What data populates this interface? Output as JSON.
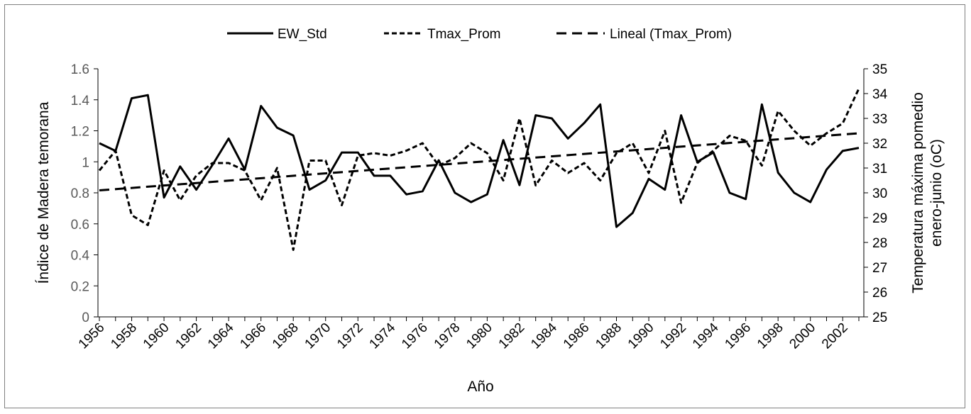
{
  "chart_data": {
    "type": "line",
    "title": "",
    "xlabel": "Año",
    "ylabel_left": "Índice de Madera temorana",
    "ylabel_right_line1": "Temperatura máxima pomedio",
    "ylabel_right_line2": "enero-junio (oC)",
    "x_tick_labels": [
      "1956",
      "1958",
      "1960",
      "1962",
      "1964",
      "1966",
      "1968",
      "1970",
      "1972",
      "1974",
      "1976",
      "1978",
      "1980",
      "1982",
      "1984",
      "1986",
      "1988",
      "1990",
      "1992",
      "1994",
      "1996",
      "1998",
      "2000",
      "2002"
    ],
    "y_left": {
      "min": 0,
      "max": 1.6,
      "step": 0.2,
      "tick_labels": [
        "0",
        "0.2",
        "0.4",
        "0.6",
        "0.8",
        "1",
        "1.2",
        "1.4",
        "1.6"
      ]
    },
    "y_right": {
      "min": 25,
      "max": 35,
      "step": 1,
      "tick_labels": [
        "25",
        "26",
        "27",
        "28",
        "29",
        "30",
        "31",
        "32",
        "33",
        "34",
        "35"
      ]
    },
    "x": [
      1956,
      1957,
      1958,
      1959,
      1960,
      1961,
      1962,
      1963,
      1964,
      1965,
      1966,
      1967,
      1968,
      1969,
      1970,
      1971,
      1972,
      1973,
      1974,
      1975,
      1976,
      1977,
      1978,
      1979,
      1980,
      1981,
      1982,
      1983,
      1984,
      1985,
      1986,
      1987,
      1988,
      1989,
      1990,
      1991,
      1992,
      1993,
      1994,
      1995,
      1996,
      1997,
      1998,
      1999,
      2000,
      2001,
      2002,
      2003
    ],
    "legend_position": "top",
    "series": [
      {
        "name": "EW_Std",
        "axis": "left",
        "style": "solid",
        "values": [
          1.12,
          1.07,
          1.41,
          1.43,
          0.77,
          0.97,
          0.82,
          0.98,
          1.15,
          0.95,
          1.36,
          1.22,
          1.17,
          0.82,
          0.88,
          1.06,
          1.06,
          0.91,
          0.91,
          0.79,
          0.81,
          1.01,
          0.8,
          0.74,
          0.79,
          1.14,
          0.85,
          1.3,
          1.28,
          1.15,
          1.25,
          1.37,
          0.58,
          0.67,
          0.89,
          0.82,
          1.3,
          1.0,
          1.06,
          0.8,
          0.76,
          1.37,
          0.93,
          0.8,
          0.74,
          0.95,
          1.07,
          1.09
        ]
      },
      {
        "name": "Tmax_Prom",
        "axis": "right",
        "style": "short-dash",
        "values": [
          30.9,
          31.7,
          29.1,
          28.7,
          30.9,
          29.7,
          30.7,
          31.2,
          31.2,
          30.9,
          29.7,
          31.0,
          27.7,
          31.3,
          31.3,
          29.5,
          31.5,
          31.6,
          31.5,
          31.7,
          32.0,
          31.1,
          31.4,
          32.0,
          31.6,
          30.5,
          33.0,
          30.3,
          31.3,
          30.8,
          31.2,
          30.5,
          31.6,
          32.0,
          30.8,
          32.5,
          29.6,
          31.2,
          31.7,
          32.3,
          32.1,
          31.1,
          33.3,
          32.5,
          31.9,
          32.4,
          32.8,
          34.2
        ]
      },
      {
        "name": "Lineal (Tmax_Prom)",
        "axis": "right",
        "style": "long-dash",
        "start": [
          1956,
          30.1
        ],
        "end": [
          2003,
          32.4
        ]
      }
    ]
  }
}
